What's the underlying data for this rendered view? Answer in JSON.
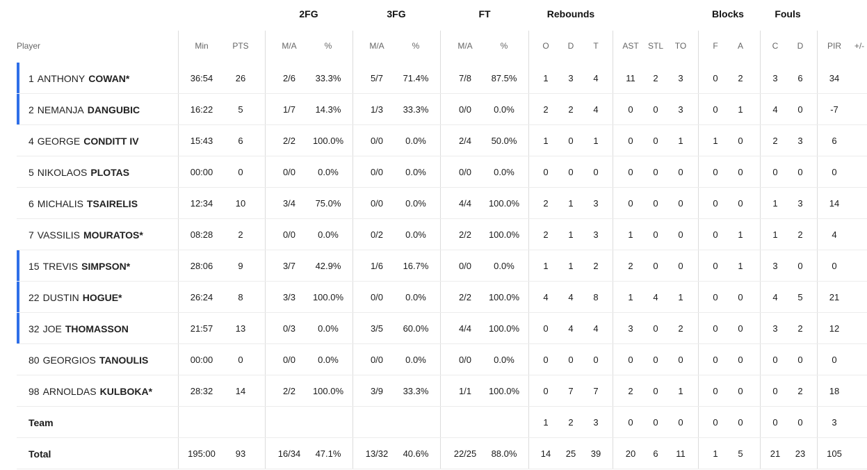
{
  "groups": [
    "2FG",
    "3FG",
    "FT",
    "Rebounds",
    "Blocks",
    "Fouls"
  ],
  "columns": {
    "player": "Player",
    "stats": [
      "Min",
      "PTS",
      "M/A",
      "%",
      "M/A",
      "%",
      "M/A",
      "%",
      "O",
      "D",
      "T",
      "AST",
      "STL",
      "TO",
      "F",
      "A",
      "C",
      "D",
      "PIR",
      "+/-"
    ]
  },
  "players": [
    {
      "num": "1",
      "first": "ANTHONY",
      "last": "COWAN",
      "star": "*",
      "starter": true,
      "stats": [
        "36:54",
        "26",
        "2/6",
        "33.3%",
        "5/7",
        "71.4%",
        "7/8",
        "87.5%",
        "1",
        "3",
        "4",
        "11",
        "2",
        "3",
        "0",
        "2",
        "3",
        "6",
        "34",
        ""
      ]
    },
    {
      "num": "2",
      "first": "NEMANJA",
      "last": "DANGUBIC",
      "star": "",
      "starter": true,
      "stats": [
        "16:22",
        "5",
        "1/7",
        "14.3%",
        "1/3",
        "33.3%",
        "0/0",
        "0.0%",
        "2",
        "2",
        "4",
        "0",
        "0",
        "3",
        "0",
        "1",
        "4",
        "0",
        "-7",
        ""
      ]
    },
    {
      "num": "4",
      "first": "GEORGE",
      "last": "CONDITT IV",
      "star": "",
      "starter": false,
      "stats": [
        "15:43",
        "6",
        "2/2",
        "100.0%",
        "0/0",
        "0.0%",
        "2/4",
        "50.0%",
        "1",
        "0",
        "1",
        "0",
        "0",
        "1",
        "1",
        "0",
        "2",
        "3",
        "6",
        ""
      ]
    },
    {
      "num": "5",
      "first": "NIKOLAOS",
      "last": "PLOTAS",
      "star": "",
      "starter": false,
      "stats": [
        "00:00",
        "0",
        "0/0",
        "0.0%",
        "0/0",
        "0.0%",
        "0/0",
        "0.0%",
        "0",
        "0",
        "0",
        "0",
        "0",
        "0",
        "0",
        "0",
        "0",
        "0",
        "0",
        ""
      ]
    },
    {
      "num": "6",
      "first": "MICHALIS",
      "last": "TSAIRELIS",
      "star": "",
      "starter": false,
      "stats": [
        "12:34",
        "10",
        "3/4",
        "75.0%",
        "0/0",
        "0.0%",
        "4/4",
        "100.0%",
        "2",
        "1",
        "3",
        "0",
        "0",
        "0",
        "0",
        "0",
        "1",
        "3",
        "14",
        ""
      ]
    },
    {
      "num": "7",
      "first": "VASSILIS",
      "last": "MOURATOS",
      "star": "*",
      "starter": false,
      "stats": [
        "08:28",
        "2",
        "0/0",
        "0.0%",
        "0/2",
        "0.0%",
        "2/2",
        "100.0%",
        "2",
        "1",
        "3",
        "1",
        "0",
        "0",
        "0",
        "1",
        "1",
        "2",
        "4",
        ""
      ]
    },
    {
      "num": "15",
      "first": "TREVIS",
      "last": "SIMPSON",
      "star": "*",
      "starter": true,
      "stats": [
        "28:06",
        "9",
        "3/7",
        "42.9%",
        "1/6",
        "16.7%",
        "0/0",
        "0.0%",
        "1",
        "1",
        "2",
        "2",
        "0",
        "0",
        "0",
        "1",
        "3",
        "0",
        "0",
        ""
      ]
    },
    {
      "num": "22",
      "first": "DUSTIN",
      "last": "HOGUE",
      "star": "*",
      "starter": true,
      "stats": [
        "26:24",
        "8",
        "3/3",
        "100.0%",
        "0/0",
        "0.0%",
        "2/2",
        "100.0%",
        "4",
        "4",
        "8",
        "1",
        "4",
        "1",
        "0",
        "0",
        "4",
        "5",
        "21",
        ""
      ]
    },
    {
      "num": "32",
      "first": "JOE",
      "last": "THOMASSON",
      "star": "",
      "starter": true,
      "stats": [
        "21:57",
        "13",
        "0/3",
        "0.0%",
        "3/5",
        "60.0%",
        "4/4",
        "100.0%",
        "0",
        "4",
        "4",
        "3",
        "0",
        "2",
        "0",
        "0",
        "3",
        "2",
        "12",
        ""
      ]
    },
    {
      "num": "80",
      "first": "GEORGIOS",
      "last": "TANOULIS",
      "star": "",
      "starter": false,
      "stats": [
        "00:00",
        "0",
        "0/0",
        "0.0%",
        "0/0",
        "0.0%",
        "0/0",
        "0.0%",
        "0",
        "0",
        "0",
        "0",
        "0",
        "0",
        "0",
        "0",
        "0",
        "0",
        "0",
        ""
      ]
    },
    {
      "num": "98",
      "first": "ARNOLDAS",
      "last": "KULBOKA",
      "star": "*",
      "starter": false,
      "stats": [
        "28:32",
        "14",
        "2/2",
        "100.0%",
        "3/9",
        "33.3%",
        "1/1",
        "100.0%",
        "0",
        "7",
        "7",
        "2",
        "0",
        "1",
        "0",
        "0",
        "0",
        "2",
        "18",
        ""
      ]
    }
  ],
  "team": {
    "label": "Team",
    "stats": [
      "",
      "",
      "",
      "",
      "",
      "",
      "",
      "",
      "1",
      "2",
      "3",
      "0",
      "0",
      "0",
      "0",
      "0",
      "0",
      "0",
      "3",
      ""
    ]
  },
  "total": {
    "label": "Total",
    "stats": [
      "195:00",
      "93",
      "16/34",
      "47.1%",
      "13/32",
      "40.6%",
      "22/25",
      "88.0%",
      "14",
      "25",
      "39",
      "20",
      "6",
      "11",
      "1",
      "5",
      "21",
      "23",
      "105",
      ""
    ]
  }
}
